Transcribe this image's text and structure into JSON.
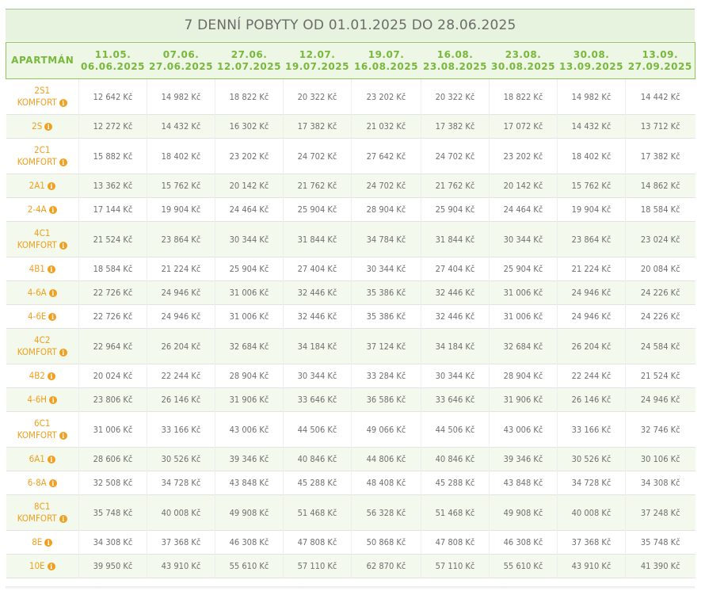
{
  "title": "7 DENNÍ POBYTY OD 01.01.2025 DO 28.06.2025",
  "header": {
    "apartment_label": "APARTMÁN",
    "periods": [
      {
        "from": "11.05.",
        "to": "06.06.2025"
      },
      {
        "from": "07.06.",
        "to": "27.06.2025"
      },
      {
        "from": "27.06.",
        "to": "12.07.2025"
      },
      {
        "from": "12.07.",
        "to": "19.07.2025"
      },
      {
        "from": "19.07.",
        "to": "16.08.2025"
      },
      {
        "from": "16.08.",
        "to": "23.08.2025"
      },
      {
        "from": "23.08.",
        "to": "30.08.2025"
      },
      {
        "from": "30.08.",
        "to": "13.09.2025"
      },
      {
        "from": "13.09.",
        "to": "27.09.2025"
      }
    ]
  },
  "accent_colors": {
    "header_green": "#78b83b",
    "apartment_orange": "#f0a020",
    "row_alt": "#f3f9ed"
  },
  "rows": [
    {
      "name": [
        "2S1",
        "KOMFORT"
      ],
      "prices": [
        "12 642 Kč",
        "14 982 Kč",
        "18 822 Kč",
        "20 322 Kč",
        "23 202 Kč",
        "20 322 Kč",
        "18 822 Kč",
        "14 982 Kč",
        "14 442 Kč"
      ]
    },
    {
      "name": [
        "2S"
      ],
      "prices": [
        "12 272 Kč",
        "14 432 Kč",
        "16 302 Kč",
        "17 382 Kč",
        "21 032 Kč",
        "17 382 Kč",
        "17 072 Kč",
        "14 432 Kč",
        "13 712 Kč"
      ]
    },
    {
      "name": [
        "2C1",
        "KOMFORT"
      ],
      "prices": [
        "15 882 Kč",
        "18 402 Kč",
        "23 202 Kč",
        "24 702 Kč",
        "27 642 Kč",
        "24 702 Kč",
        "23 202 Kč",
        "18 402 Kč",
        "17 382 Kč"
      ]
    },
    {
      "name": [
        "2A1"
      ],
      "prices": [
        "13 362 Kč",
        "15 762 Kč",
        "20 142 Kč",
        "21 762 Kč",
        "24 702 Kč",
        "21 762 Kč",
        "20 142 Kč",
        "15 762 Kč",
        "14 862 Kč"
      ]
    },
    {
      "name": [
        "2-4A"
      ],
      "prices": [
        "17 144 Kč",
        "19 904 Kč",
        "24 464 Kč",
        "25 904 Kč",
        "28 904 Kč",
        "25 904 Kč",
        "24 464 Kč",
        "19 904 Kč",
        "18 584 Kč"
      ]
    },
    {
      "name": [
        "4C1",
        "KOMFORT"
      ],
      "prices": [
        "21 524 Kč",
        "23 864 Kč",
        "30 344 Kč",
        "31 844 Kč",
        "34 784 Kč",
        "31 844 Kč",
        "30 344 Kč",
        "23 864 Kč",
        "23 024 Kč"
      ]
    },
    {
      "name": [
        "4B1"
      ],
      "prices": [
        "18 584 Kč",
        "21 224 Kč",
        "25 904 Kč",
        "27 404 Kč",
        "30 344 Kč",
        "27 404 Kč",
        "25 904 Kč",
        "21 224 Kč",
        "20 084 Kč"
      ]
    },
    {
      "name": [
        "4-6A"
      ],
      "prices": [
        "22 726 Kč",
        "24 946 Kč",
        "31 006 Kč",
        "32 446 Kč",
        "35 386 Kč",
        "32 446 Kč",
        "31 006 Kč",
        "24 946 Kč",
        "24 226 Kč"
      ]
    },
    {
      "name": [
        "4-6E"
      ],
      "prices": [
        "22 726 Kč",
        "24 946 Kč",
        "31 006 Kč",
        "32 446 Kč",
        "35 386 Kč",
        "32 446 Kč",
        "31 006 Kč",
        "24 946 Kč",
        "24 226 Kč"
      ]
    },
    {
      "name": [
        "4C2",
        "KOMFORT"
      ],
      "prices": [
        "22 964 Kč",
        "26 204 Kč",
        "32 684 Kč",
        "34 184 Kč",
        "37 124 Kč",
        "34 184 Kč",
        "32 684 Kč",
        "26 204 Kč",
        "24 584 Kč"
      ]
    },
    {
      "name": [
        "4B2"
      ],
      "prices": [
        "20 024 Kč",
        "22 244 Kč",
        "28 904 Kč",
        "30 344 Kč",
        "33 284 Kč",
        "30 344 Kč",
        "28 904 Kč",
        "22 244 Kč",
        "21 524 Kč"
      ]
    },
    {
      "name": [
        "4-6H"
      ],
      "prices": [
        "23 806 Kč",
        "26 146 Kč",
        "31 906 Kč",
        "33 646 Kč",
        "36 586 Kč",
        "33 646 Kč",
        "31 906 Kč",
        "26 146 Kč",
        "24 946 Kč"
      ]
    },
    {
      "name": [
        "6C1",
        "KOMFORT"
      ],
      "prices": [
        "31 006 Kč",
        "33 166 Kč",
        "43 006 Kč",
        "44 506 Kč",
        "49 066 Kč",
        "44 506 Kč",
        "43 006 Kč",
        "33 166 Kč",
        "32 746 Kč"
      ]
    },
    {
      "name": [
        "6A1"
      ],
      "prices": [
        "28 606 Kč",
        "30 526 Kč",
        "39 346 Kč",
        "40 846 Kč",
        "44 806 Kč",
        "40 846 Kč",
        "39 346 Kč",
        "30 526 Kč",
        "30 106 Kč"
      ]
    },
    {
      "name": [
        "6-8A"
      ],
      "prices": [
        "32 508 Kč",
        "34 728 Kč",
        "43 848 Kč",
        "45 288 Kč",
        "48 408 Kč",
        "45 288 Kč",
        "43 848 Kč",
        "34 728 Kč",
        "34 308 Kč"
      ]
    },
    {
      "name": [
        "8C1",
        "KOMFORT"
      ],
      "prices": [
        "35 748 Kč",
        "40 008 Kč",
        "49 908 Kč",
        "51 468 Kč",
        "56 328 Kč",
        "51 468 Kč",
        "49 908 Kč",
        "40 008 Kč",
        "37 248 Kč"
      ]
    },
    {
      "name": [
        "8E"
      ],
      "prices": [
        "34 308 Kč",
        "37 368 Kč",
        "46 308 Kč",
        "47 808 Kč",
        "50 868 Kč",
        "47 808 Kč",
        "46 308 Kč",
        "37 368 Kč",
        "35 748 Kč"
      ]
    },
    {
      "name": [
        "10E"
      ],
      "prices": [
        "39 950 Kč",
        "43 910 Kč",
        "55 610 Kč",
        "57 110 Kč",
        "62 870 Kč",
        "57 110 Kč",
        "55 610 Kč",
        "43 910 Kč",
        "41 390 Kč"
      ]
    }
  ]
}
